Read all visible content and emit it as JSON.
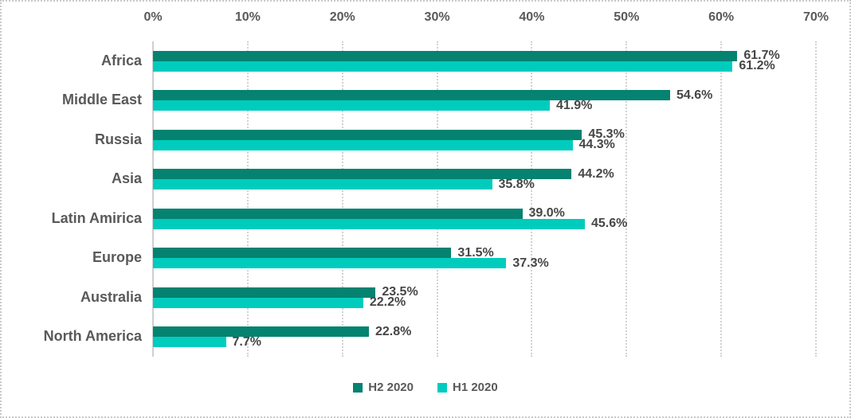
{
  "chart_data": {
    "type": "bar",
    "orientation": "horizontal",
    "title": "",
    "categories": [
      "Africa",
      "Middle East",
      "Russia",
      "Asia",
      "Latin Amirica",
      "Europe",
      "Australia",
      "North America"
    ],
    "series": [
      {
        "name": "H2 2020",
        "color": "#058270",
        "values": [
          61.7,
          54.6,
          45.3,
          44.2,
          39.0,
          31.5,
          23.5,
          22.8
        ]
      },
      {
        "name": "H1 2020",
        "color": "#00CCBE",
        "values": [
          61.2,
          41.9,
          44.3,
          35.8,
          45.6,
          37.3,
          22.2,
          7.7
        ]
      }
    ],
    "x_axis": {
      "position": "top",
      "min": 0,
      "max": 70,
      "tick_step": 10,
      "tick_labels": [
        "0%",
        "10%",
        "20%",
        "30%",
        "40%",
        "50%",
        "60%",
        "70%"
      ]
    },
    "data_labels": {
      "visible": true,
      "suffix": "%",
      "decimals": 1
    },
    "grid": true,
    "legend_position": "bottom",
    "legend": [
      {
        "label": "H2 2020",
        "color": "#058270"
      },
      {
        "label": "H1 2020",
        "color": "#00CCBE"
      }
    ],
    "text_color": "#595959",
    "background": "#ffffff"
  }
}
